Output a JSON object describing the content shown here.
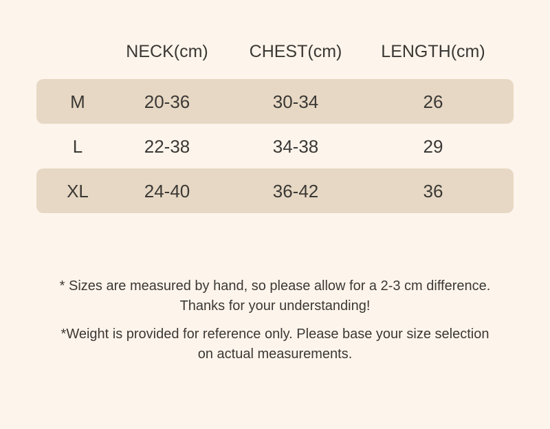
{
  "page": {
    "background_color": "#fdf5ec",
    "row_highlight_color": "#e6d8c4",
    "text_color": "#3b3835"
  },
  "size_chart": {
    "corner_label": "",
    "columns": [
      "NECK(cm)",
      "CHEST(cm)",
      "LENGTH(cm)"
    ],
    "rows": [
      {
        "size": "M",
        "neck": "20-36",
        "chest": "30-34",
        "length": "26",
        "highlighted": true
      },
      {
        "size": "L",
        "neck": "22-38",
        "chest": "34-38",
        "length": "29",
        "highlighted": false
      },
      {
        "size": "XL",
        "neck": "24-40",
        "chest": "36-42",
        "length": "36",
        "highlighted": true
      }
    ]
  },
  "notes": [
    {
      "line1": "* Sizes are measured by hand, so please allow for a 2-3 cm difference.",
      "line2": "Thanks for your understanding!"
    },
    {
      "line1": "*Weight is provided for reference only. Please base your size selection",
      "line2": "on actual measurements."
    }
  ]
}
